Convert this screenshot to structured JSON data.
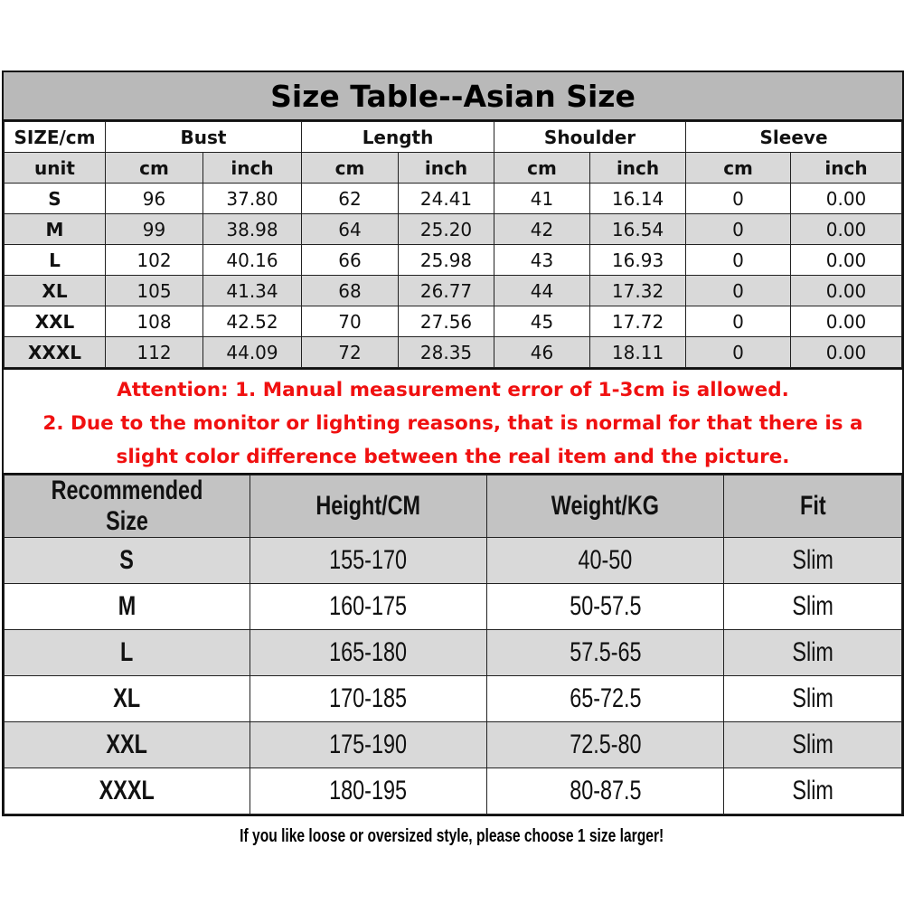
{
  "title": "Size Table--Asian Size",
  "measure_table": {
    "header_groups": [
      "SIZE/cm",
      "Bust",
      "Length",
      "Shoulder",
      "Sleeve"
    ],
    "unit_row": [
      "unit",
      "cm",
      "inch",
      "cm",
      "inch",
      "cm",
      "inch",
      "cm",
      "inch"
    ],
    "rows": [
      [
        "S",
        "96",
        "37.80",
        "62",
        "24.41",
        "41",
        "16.14",
        "0",
        "0.00"
      ],
      [
        "M",
        "99",
        "38.98",
        "64",
        "25.20",
        "42",
        "16.54",
        "0",
        "0.00"
      ],
      [
        "L",
        "102",
        "40.16",
        "66",
        "25.98",
        "43",
        "16.93",
        "0",
        "0.00"
      ],
      [
        "XL",
        "105",
        "41.34",
        "68",
        "26.77",
        "44",
        "17.32",
        "0",
        "0.00"
      ],
      [
        "XXL",
        "108",
        "42.52",
        "70",
        "27.56",
        "45",
        "17.72",
        "0",
        "0.00"
      ],
      [
        "XXXL",
        "112",
        "44.09",
        "72",
        "28.35",
        "46",
        "18.11",
        "0",
        "0.00"
      ]
    ]
  },
  "attention": {
    "line1": "Attention:  1. Manual measurement error of 1-3cm is allowed.",
    "line2": "2. Due to the monitor or lighting reasons, that is normal for that there is a",
    "line3": "slight color difference between the real item and the picture.",
    "color": "#f01010"
  },
  "recommend_table": {
    "headers": [
      "Recommended Size",
      "Height/CM",
      "Weight/KG",
      "Fit"
    ],
    "rows": [
      [
        "S",
        "155-170",
        "40-50",
        "Slim"
      ],
      [
        "M",
        "160-175",
        "50-57.5",
        "Slim"
      ],
      [
        "L",
        "165-180",
        "57.5-65",
        "Slim"
      ],
      [
        "XL",
        "170-185",
        "65-72.5",
        "Slim"
      ],
      [
        "XXL",
        "175-190",
        "72.5-80",
        "Slim"
      ],
      [
        "XXXL",
        "180-195",
        "80-87.5",
        "Slim"
      ]
    ]
  },
  "footer": "If you like loose or oversized style, please choose 1 size larger!"
}
